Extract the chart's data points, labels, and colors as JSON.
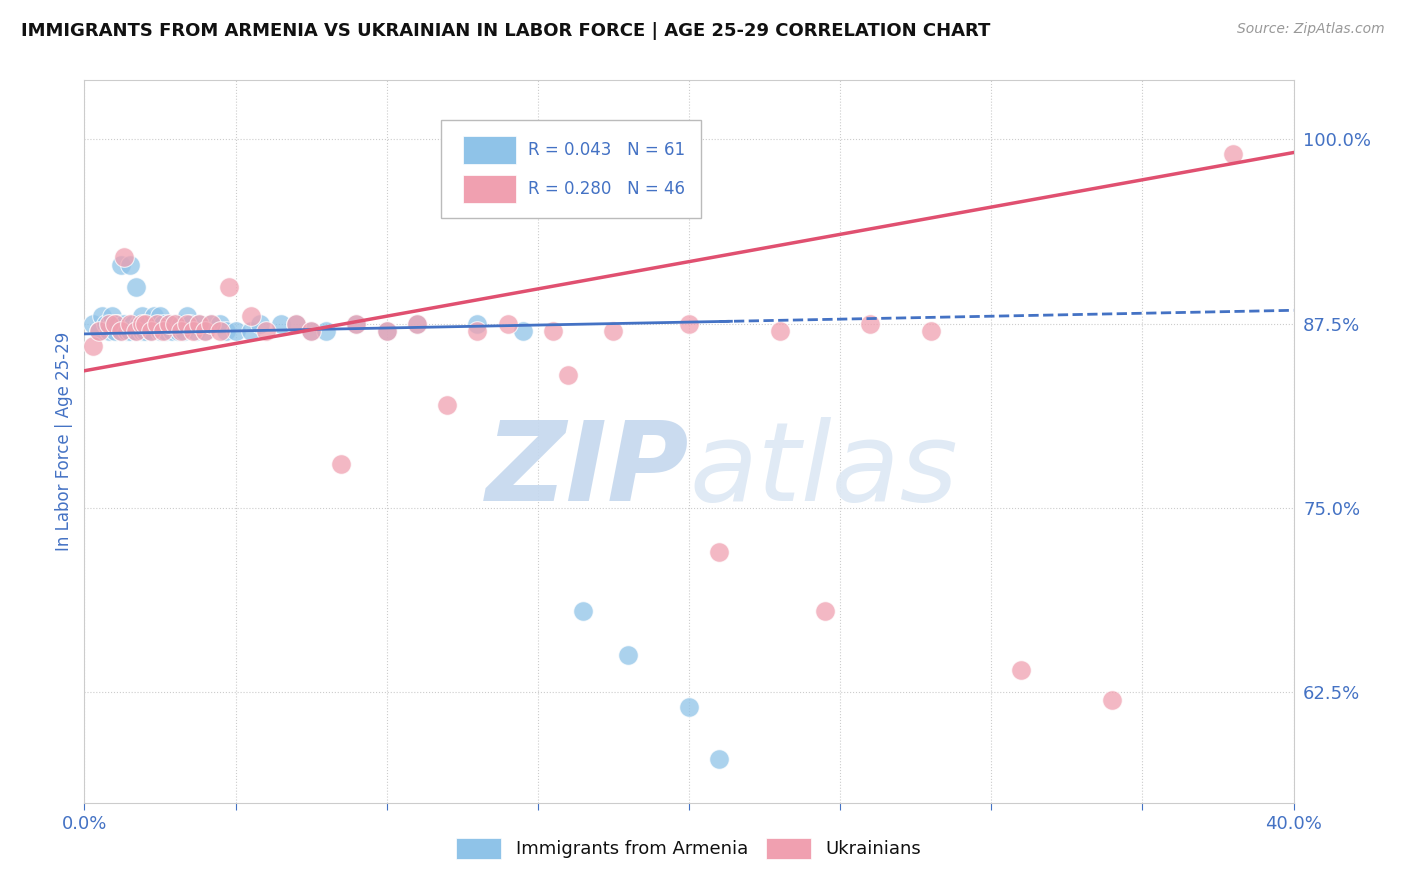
{
  "title": "IMMIGRANTS FROM ARMENIA VS UKRAINIAN IN LABOR FORCE | AGE 25-29 CORRELATION CHART",
  "source": "Source: ZipAtlas.com",
  "ylabel": "In Labor Force | Age 25-29",
  "xlim": [
    0.0,
    0.4
  ],
  "ylim": [
    0.55,
    1.04
  ],
  "xticks": [
    0.0,
    0.05,
    0.1,
    0.15,
    0.2,
    0.25,
    0.3,
    0.35,
    0.4
  ],
  "xticklabels": [
    "0.0%",
    "",
    "",
    "",
    "",
    "",
    "",
    "",
    "40.0%"
  ],
  "yticks": [
    0.625,
    0.75,
    0.875,
    1.0
  ],
  "yticklabels": [
    "62.5%",
    "75.0%",
    "87.5%",
    "100.0%"
  ],
  "legend_r1": "R = 0.043",
  "legend_n1": "N = 61",
  "legend_r2": "R = 0.280",
  "legend_n2": "N = 46",
  "color_armenia": "#8fc3e8",
  "color_ukraine": "#f0a0b0",
  "color_trend_armenia": "#4472c4",
  "color_trend_ukraine": "#e05070",
  "background_color": "#ffffff",
  "grid_color": "#cccccc",
  "title_color": "#111111",
  "axis_label_color": "#4472c4",
  "tick_label_color": "#4472c4",
  "armenia_x": [
    0.003,
    0.005,
    0.006,
    0.007,
    0.008,
    0.009,
    0.01,
    0.01,
    0.011,
    0.012,
    0.012,
    0.013,
    0.014,
    0.015,
    0.015,
    0.016,
    0.017,
    0.017,
    0.018,
    0.019,
    0.019,
    0.02,
    0.02,
    0.021,
    0.022,
    0.023,
    0.024,
    0.025,
    0.025,
    0.026,
    0.027,
    0.028,
    0.029,
    0.03,
    0.031,
    0.032,
    0.033,
    0.034,
    0.035,
    0.037,
    0.038,
    0.04,
    0.042,
    0.045,
    0.047,
    0.05,
    0.055,
    0.058,
    0.065,
    0.07,
    0.075,
    0.08,
    0.09,
    0.1,
    0.11,
    0.13,
    0.145,
    0.165,
    0.18,
    0.2,
    0.21
  ],
  "armenia_y": [
    0.875,
    0.87,
    0.88,
    0.875,
    0.87,
    0.88,
    0.875,
    0.87,
    0.875,
    0.87,
    0.915,
    0.875,
    0.87,
    0.87,
    0.915,
    0.875,
    0.87,
    0.9,
    0.875,
    0.88,
    0.87,
    0.875,
    0.87,
    0.875,
    0.87,
    0.88,
    0.875,
    0.87,
    0.88,
    0.875,
    0.87,
    0.875,
    0.87,
    0.875,
    0.87,
    0.875,
    0.87,
    0.88,
    0.875,
    0.87,
    0.875,
    0.87,
    0.875,
    0.875,
    0.87,
    0.87,
    0.87,
    0.875,
    0.875,
    0.875,
    0.87,
    0.87,
    0.875,
    0.87,
    0.875,
    0.875,
    0.87,
    0.68,
    0.65,
    0.615,
    0.58
  ],
  "ukraine_x": [
    0.003,
    0.005,
    0.008,
    0.01,
    0.012,
    0.013,
    0.015,
    0.017,
    0.019,
    0.02,
    0.022,
    0.024,
    0.026,
    0.028,
    0.03,
    0.032,
    0.034,
    0.036,
    0.038,
    0.04,
    0.042,
    0.045,
    0.048,
    0.055,
    0.06,
    0.07,
    0.075,
    0.085,
    0.09,
    0.1,
    0.11,
    0.12,
    0.13,
    0.14,
    0.155,
    0.16,
    0.175,
    0.2,
    0.21,
    0.23,
    0.245,
    0.26,
    0.28,
    0.31,
    0.34,
    0.38
  ],
  "ukraine_y": [
    0.86,
    0.87,
    0.875,
    0.875,
    0.87,
    0.92,
    0.875,
    0.87,
    0.875,
    0.875,
    0.87,
    0.875,
    0.87,
    0.875,
    0.875,
    0.87,
    0.875,
    0.87,
    0.875,
    0.87,
    0.875,
    0.87,
    0.9,
    0.88,
    0.87,
    0.875,
    0.87,
    0.78,
    0.875,
    0.87,
    0.875,
    0.82,
    0.87,
    0.875,
    0.87,
    0.84,
    0.87,
    0.875,
    0.72,
    0.87,
    0.68,
    0.875,
    0.87,
    0.64,
    0.62,
    0.99
  ]
}
